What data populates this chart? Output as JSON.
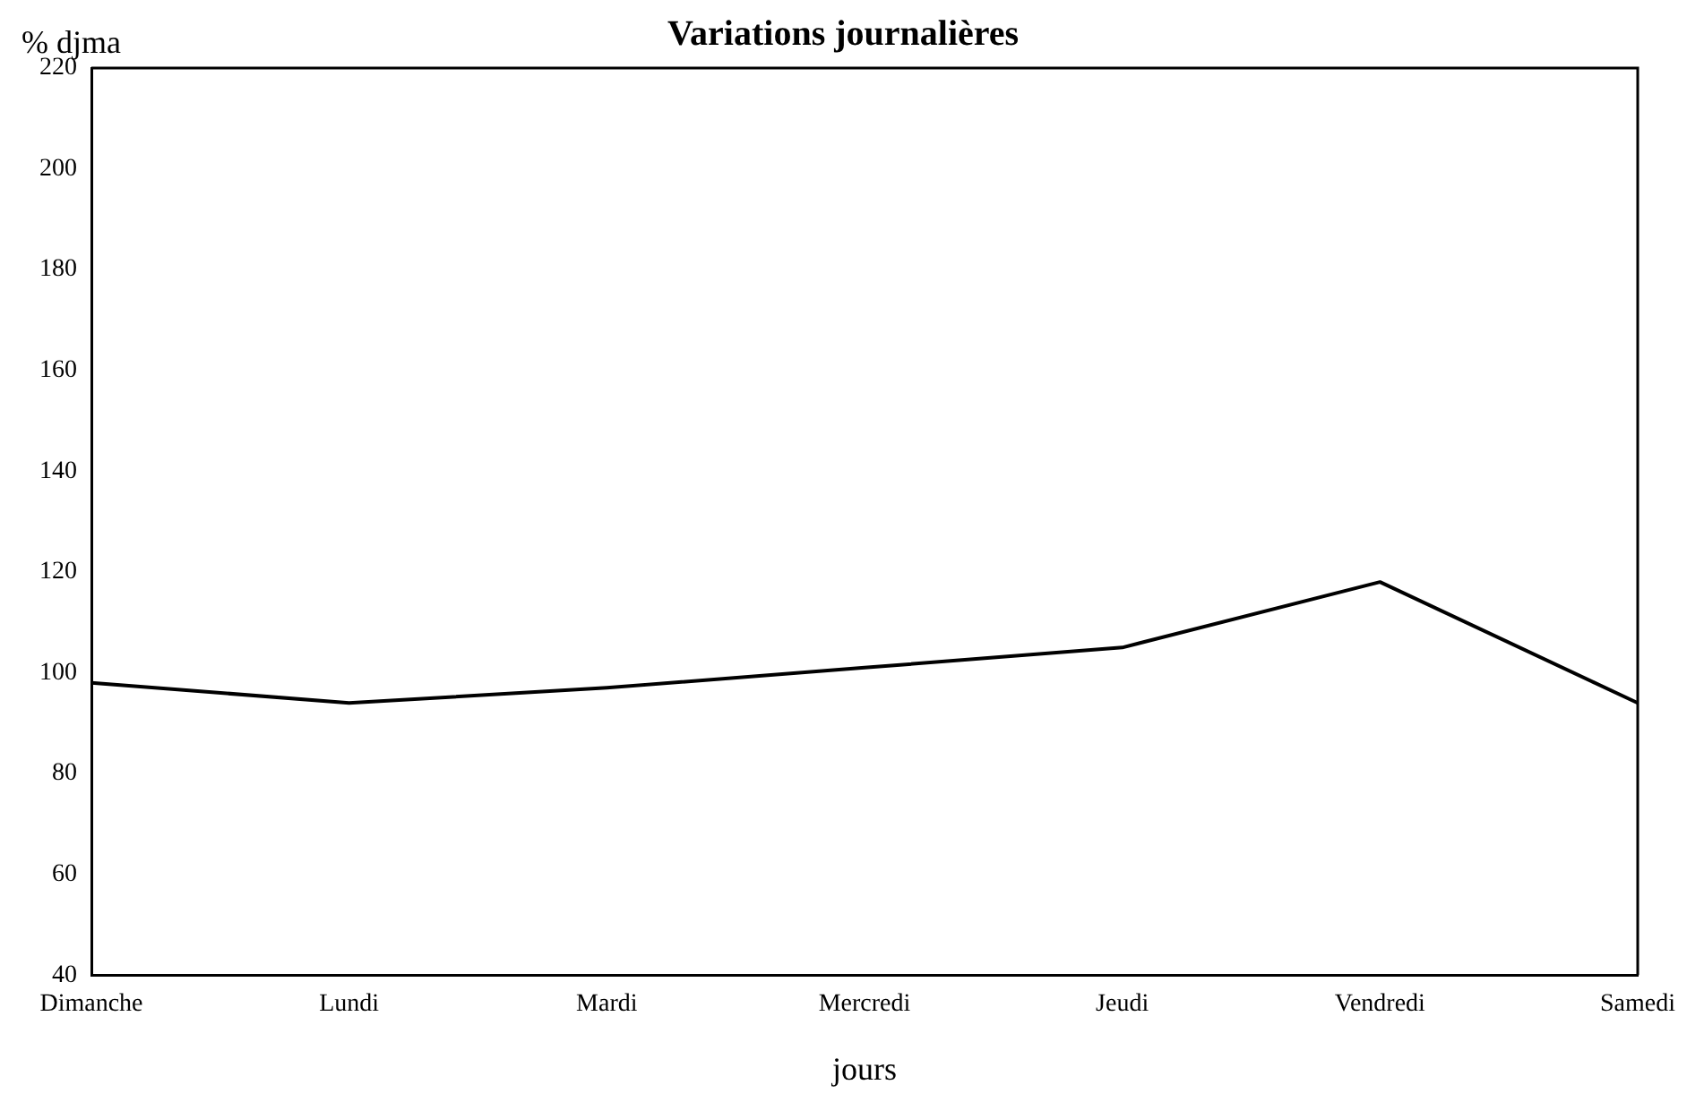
{
  "chart_data": {
    "type": "line",
    "title": "Variations journalières",
    "xlabel": "jours",
    "ylabel": "% djma",
    "categories": [
      "Dimanche",
      "Lundi",
      "Mardi",
      "Mercredi",
      "Jeudi",
      "Vendredi",
      "Samedi"
    ],
    "series": [
      {
        "color": "#000000",
        "values": [
          98,
          94,
          97,
          101,
          105,
          118,
          94
        ]
      }
    ],
    "ylim": [
      40,
      220
    ],
    "yticks": [
      40,
      60,
      80,
      100,
      120,
      140,
      160,
      180,
      200,
      220
    ],
    "grid": false,
    "legend": false,
    "marker": "none",
    "line_style": "solid"
  }
}
